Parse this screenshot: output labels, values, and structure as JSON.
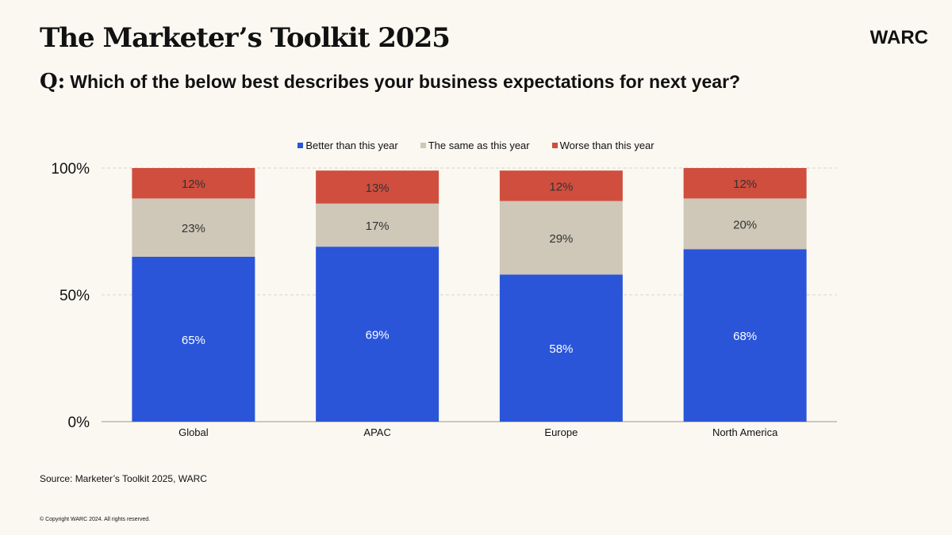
{
  "header": {
    "title": "The Marketer’s Toolkit 2025",
    "logo": "WARC",
    "question_prefix": "Q:",
    "question": "Which of the below best describes your business expectations for next year?"
  },
  "footer": {
    "source": "Source: Marketer’s Toolkit 2025, WARC",
    "copyright": "© Copyright WARC 2024. All rights reserved."
  },
  "colors": {
    "better": "#2a55d9",
    "same": "#cfc7b8",
    "worse": "#cf4e3e",
    "background": "#faf8f1"
  },
  "chart_data": {
    "type": "bar",
    "stacked": true,
    "categories": [
      "Global",
      "APAC",
      "Europe",
      "North America"
    ],
    "series": [
      {
        "name": "Better than this year",
        "values": [
          65,
          69,
          58,
          68
        ],
        "labels": [
          "65%",
          "69%",
          "58%",
          "68%"
        ],
        "color": "#2a55d9"
      },
      {
        "name": "The same as this year",
        "values": [
          23,
          17,
          29,
          20
        ],
        "labels": [
          "23%",
          "17%",
          "29%",
          "20%"
        ],
        "color": "#cfc7b8"
      },
      {
        "name": "Worse than this year",
        "values": [
          12,
          13,
          12,
          12
        ],
        "labels": [
          "12%",
          "13%",
          "12%",
          "12%"
        ],
        "color": "#cf4e3e"
      }
    ],
    "yticks": [
      "0%",
      "50%",
      "100%"
    ],
    "ytick_values": [
      0,
      50,
      100
    ],
    "ylim": [
      0,
      100
    ],
    "legend_position": "top-center",
    "grid": true
  }
}
